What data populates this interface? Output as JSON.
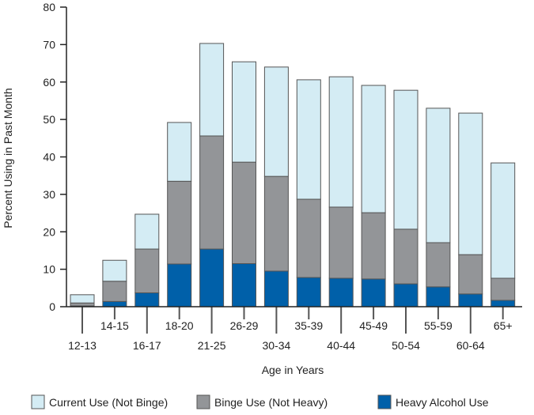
{
  "chart_data": {
    "type": "bar",
    "stacked": true,
    "title": "",
    "xlabel": "Age in Years",
    "ylabel": "Percent Using in Past Month",
    "ylim": [
      0,
      80
    ],
    "yticks": [
      0,
      10,
      20,
      30,
      40,
      50,
      60,
      70,
      80
    ],
    "grid": false,
    "legend_placement": "bottom",
    "categories": [
      "12-13",
      "14-15",
      "16-17",
      "18-20",
      "21-25",
      "26-29",
      "30-34",
      "35-39",
      "40-44",
      "45-49",
      "50-54",
      "55-59",
      "60-64",
      "65+"
    ],
    "series": [
      {
        "name": "Heavy Alcohol Use",
        "color": "#0060a9",
        "values": [
          0.2,
          1.4,
          3.7,
          11.4,
          15.4,
          11.5,
          9.5,
          7.8,
          7.6,
          7.4,
          6.1,
          5.3,
          3.4,
          1.7
        ]
      },
      {
        "name": "Binge Use (Not Heavy)",
        "color": "#939598",
        "values": [
          0.8,
          5.4,
          11.7,
          22.1,
          30.2,
          27.1,
          25.3,
          20.9,
          19.0,
          17.7,
          14.6,
          11.8,
          10.5,
          5.9
        ]
      },
      {
        "name": "Current Use (Not Binge)",
        "color": "#d4ecf4",
        "values": [
          2.2,
          5.6,
          9.3,
          15.7,
          24.7,
          26.8,
          29.2,
          31.9,
          34.8,
          34.0,
          37.1,
          35.9,
          37.8,
          30.8
        ]
      }
    ],
    "legend_order": [
      "Current Use (Not Binge)",
      "Binge Use (Not Heavy)",
      "Heavy Alcohol Use"
    ]
  }
}
